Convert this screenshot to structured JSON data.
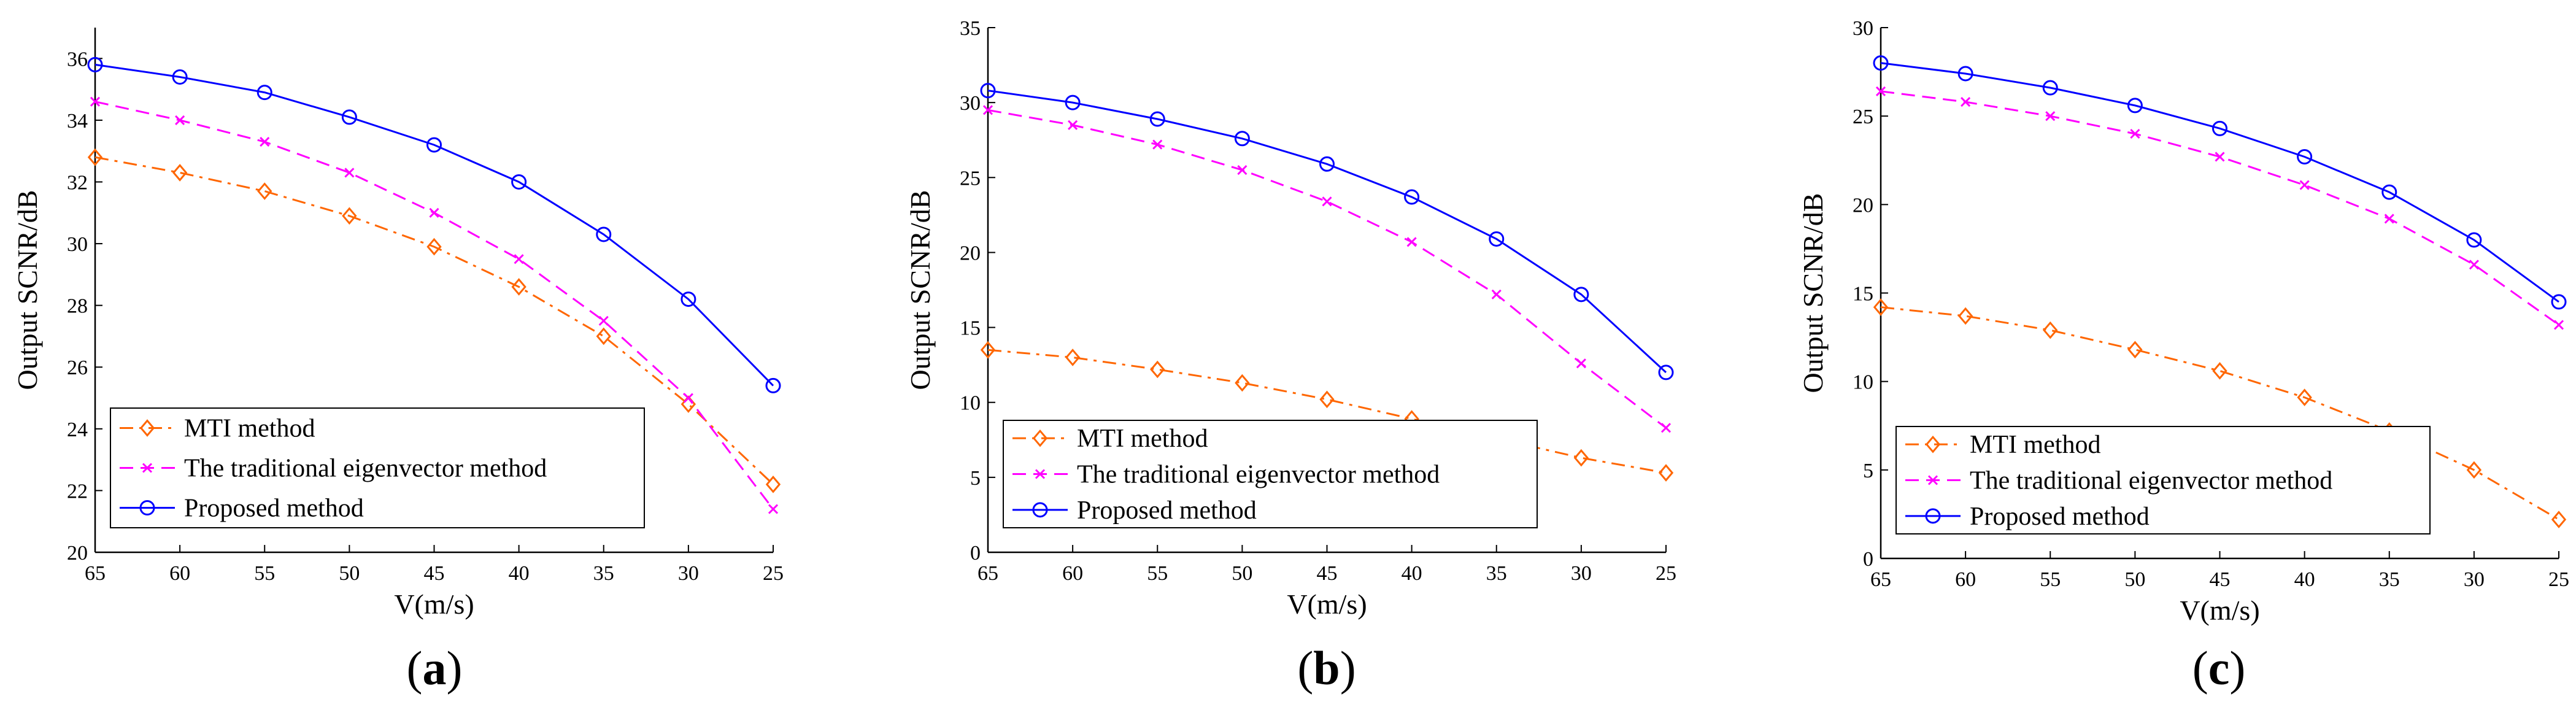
{
  "chart_data": [
    {
      "type": "line",
      "panel_label": "a",
      "xlabel": "V(m/s)",
      "ylabel": "Output SCNR/dB",
      "x": [
        65,
        60,
        55,
        50,
        45,
        40,
        35,
        30,
        25
      ],
      "xticks": [
        65,
        60,
        55,
        50,
        45,
        40,
        35,
        30,
        25
      ],
      "xlim": [
        65,
        25
      ],
      "ylim": [
        20,
        37
      ],
      "yticks": [
        20,
        22,
        24,
        26,
        28,
        30,
        32,
        34,
        36
      ],
      "legend_position": "bottom-left",
      "series": [
        {
          "name": "MTI method",
          "color": "#ff6600",
          "dash": "dashdot",
          "marker": "diamond",
          "values": [
            32.8,
            32.3,
            31.7,
            30.9,
            29.9,
            28.6,
            27.0,
            24.8,
            22.2
          ]
        },
        {
          "name": "The traditional eigenvector method",
          "color": "#ff00ff",
          "dash": "dashed",
          "marker": "x",
          "values": [
            34.6,
            34.0,
            33.3,
            32.3,
            31.0,
            29.5,
            27.5,
            25.0,
            21.4
          ]
        },
        {
          "name": "Proposed method",
          "color": "#0000ff",
          "dash": "solid",
          "marker": "circle",
          "values": [
            35.8,
            35.4,
            34.9,
            34.1,
            33.2,
            32.0,
            30.3,
            28.2,
            25.4
          ]
        }
      ]
    },
    {
      "type": "line",
      "panel_label": "b",
      "xlabel": "V(m/s)",
      "ylabel": "Output SCNR/dB",
      "x": [
        65,
        60,
        55,
        50,
        45,
        40,
        35,
        30,
        25
      ],
      "xticks": [
        65,
        60,
        55,
        50,
        45,
        40,
        35,
        30,
        25
      ],
      "xlim": [
        65,
        25
      ],
      "ylim": [
        0,
        35
      ],
      "yticks": [
        0,
        5,
        10,
        15,
        20,
        25,
        30,
        35
      ],
      "legend_position": "bottom-left",
      "series": [
        {
          "name": "MTI method",
          "color": "#ff6600",
          "dash": "dashdot",
          "marker": "diamond",
          "values": [
            13.5,
            13.0,
            12.2,
            11.3,
            10.2,
            8.9,
            7.6,
            6.3,
            5.3
          ]
        },
        {
          "name": "The traditional eigenvector method",
          "color": "#ff00ff",
          "dash": "dashed",
          "marker": "x",
          "values": [
            29.5,
            28.5,
            27.2,
            25.5,
            23.4,
            20.7,
            17.2,
            12.6,
            8.3
          ]
        },
        {
          "name": "Proposed method",
          "color": "#0000ff",
          "dash": "solid",
          "marker": "circle",
          "values": [
            30.8,
            30.0,
            28.9,
            27.6,
            25.9,
            23.7,
            20.9,
            17.2,
            12.0
          ]
        }
      ]
    },
    {
      "type": "line",
      "panel_label": "c",
      "xlabel": "V(m/s)",
      "ylabel": "Output SCNR/dB",
      "x": [
        65,
        60,
        55,
        50,
        45,
        40,
        35,
        30,
        25
      ],
      "xticks": [
        65,
        60,
        55,
        50,
        45,
        40,
        35,
        30,
        25
      ],
      "xlim": [
        65,
        25
      ],
      "ylim": [
        0,
        30
      ],
      "yticks": [
        0,
        5,
        10,
        15,
        20,
        25,
        30
      ],
      "legend_position": "bottom-left",
      "series": [
        {
          "name": "MTI method",
          "color": "#ff6600",
          "dash": "dashdot",
          "marker": "diamond",
          "values": [
            14.2,
            13.7,
            12.9,
            11.8,
            10.6,
            9.1,
            7.2,
            5.0,
            2.2
          ]
        },
        {
          "name": "The traditional eigenvector method",
          "color": "#ff00ff",
          "dash": "dashed",
          "marker": "x",
          "values": [
            26.4,
            25.8,
            25.0,
            24.0,
            22.7,
            21.1,
            19.2,
            16.6,
            13.2
          ]
        },
        {
          "name": "Proposed method",
          "color": "#0000ff",
          "dash": "solid",
          "marker": "circle",
          "values": [
            28.0,
            27.4,
            26.6,
            25.6,
            24.3,
            22.7,
            20.7,
            18.0,
            14.5
          ]
        }
      ]
    }
  ]
}
